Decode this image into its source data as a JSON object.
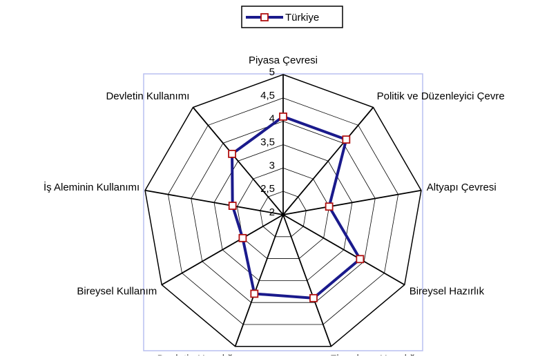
{
  "chart_data": {
    "type": "radar",
    "categories": [
      "Piyasa Çevresi",
      "Politik ve Düzenleyici Çevre",
      "Altyapı Çevresi",
      "Bireysel Hazırlık",
      "Firmaların Hazırlığı",
      "Devletin Hazırlığı",
      "Bireysel Kullanım",
      "İş Aleminin Kullanımı",
      "Devletin Kullanımı"
    ],
    "series": [
      {
        "name": "Türkiye",
        "color": "#1a1a8c",
        "marker_color": "#b01010",
        "values": [
          4.1,
          4.1,
          3.0,
          3.9,
          3.9,
          3.8,
          3.0,
          3.1,
          3.7
        ]
      }
    ],
    "rlim": [
      2,
      5
    ],
    "rticks": [
      2,
      {
        "value": 2.5,
        "label": "2,5"
      },
      3,
      {
        "value": 3.5,
        "label": "3,5"
      },
      4,
      {
        "value": 4.5,
        "label": "4,5"
      },
      5
    ],
    "grid": true,
    "legend": "top"
  }
}
